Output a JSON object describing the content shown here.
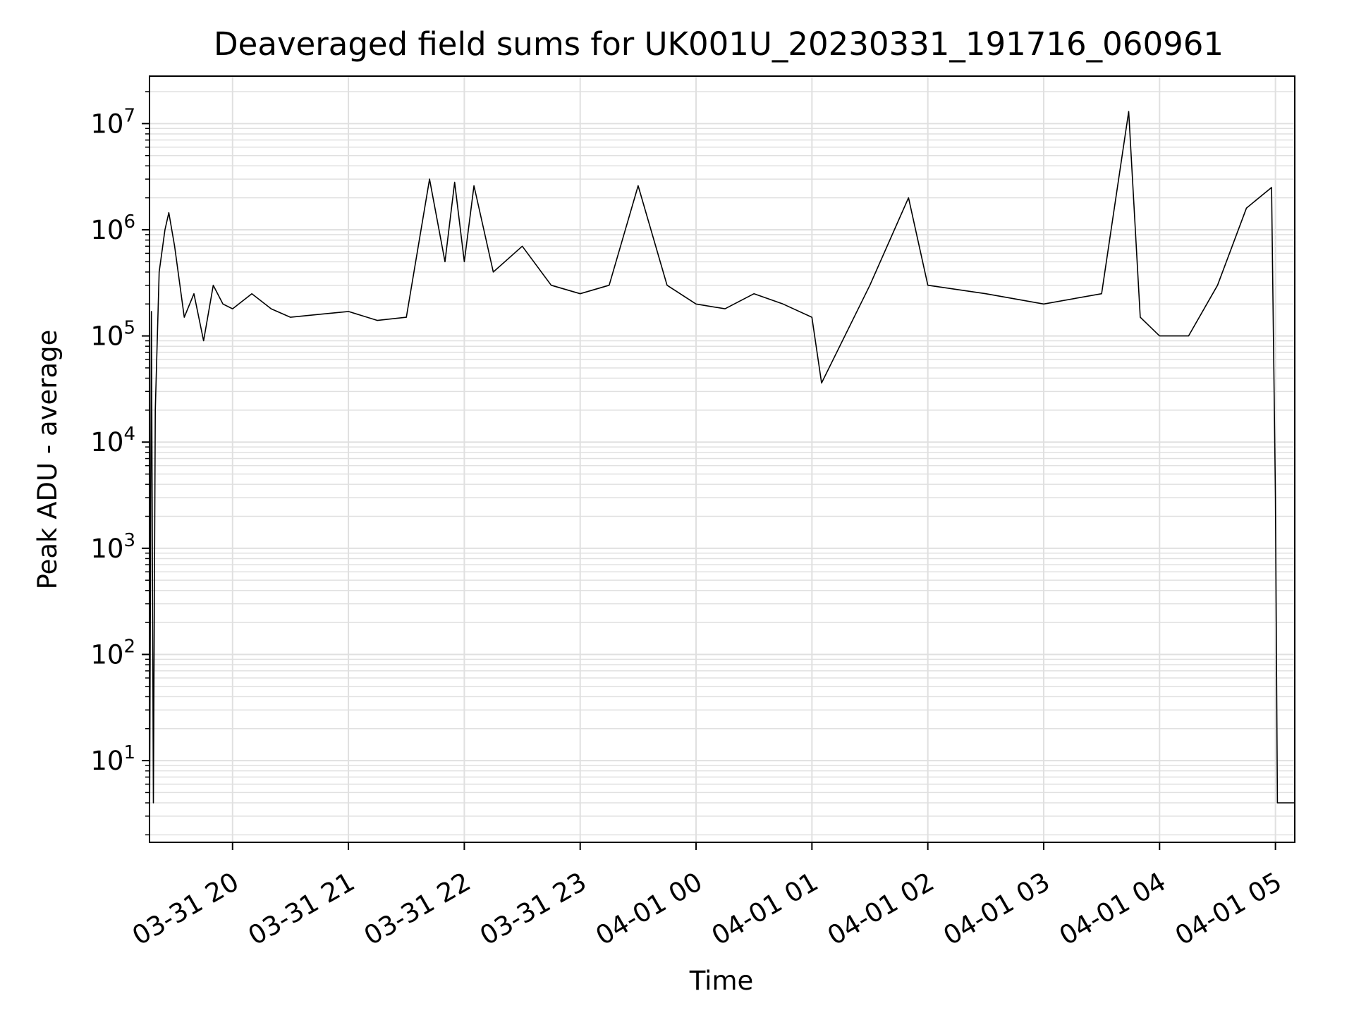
{
  "chart_data": {
    "type": "line",
    "title": "Deaveraged field sums for UK001U_20230331_191716_060961",
    "xlabel": "Time",
    "ylabel": "Peak ADU - average",
    "yscale": "log",
    "ylim": [
      1.7,
      28000000
    ],
    "xlim": [
      "2023-03-31 19:17",
      "2023-04-01 05:10"
    ],
    "grid": true,
    "line_color": "#000000",
    "grid_color": "#e0e0e0",
    "x_ticks": [
      {
        "label": "03-31 20",
        "time": "2023-03-31 20:00"
      },
      {
        "label": "03-31 21",
        "time": "2023-03-31 21:00"
      },
      {
        "label": "03-31 22",
        "time": "2023-03-31 22:00"
      },
      {
        "label": "03-31 23",
        "time": "2023-03-31 23:00"
      },
      {
        "label": "04-01 00",
        "time": "2023-04-01 00:00"
      },
      {
        "label": "04-01 01",
        "time": "2023-04-01 01:00"
      },
      {
        "label": "04-01 02",
        "time": "2023-04-01 02:00"
      },
      {
        "label": "04-01 03",
        "time": "2023-04-01 03:00"
      },
      {
        "label": "04-01 04",
        "time": "2023-04-01 04:00"
      },
      {
        "label": "04-01 05",
        "time": "2023-04-01 05:00"
      }
    ],
    "y_ticks": [
      {
        "base": "10",
        "exp": "1",
        "value": 10
      },
      {
        "base": "10",
        "exp": "2",
        "value": 100
      },
      {
        "base": "10",
        "exp": "3",
        "value": 1000
      },
      {
        "base": "10",
        "exp": "4",
        "value": 10000
      },
      {
        "base": "10",
        "exp": "5",
        "value": 100000
      },
      {
        "base": "10",
        "exp": "6",
        "value": 1000000
      },
      {
        "base": "10",
        "exp": "7",
        "value": 10000000
      }
    ],
    "series": [
      {
        "points": [
          [
            "2023-03-31 19:17",
            1.7
          ],
          [
            "2023-03-31 19:18",
            170000
          ],
          [
            "2023-03-31 19:19",
            4
          ],
          [
            "2023-03-31 19:20",
            20000
          ],
          [
            "2023-03-31 19:22",
            400000
          ],
          [
            "2023-03-31 19:25",
            1000000
          ],
          [
            "2023-03-31 19:27",
            1450000
          ],
          [
            "2023-03-31 19:30",
            700000
          ],
          [
            "2023-03-31 19:35",
            150000
          ],
          [
            "2023-03-31 19:40",
            250000
          ],
          [
            "2023-03-31 19:45",
            90000
          ],
          [
            "2023-03-31 19:50",
            300000
          ],
          [
            "2023-03-31 19:55",
            200000
          ],
          [
            "2023-03-31 20:00",
            180000
          ],
          [
            "2023-03-31 20:10",
            250000
          ],
          [
            "2023-03-31 20:20",
            180000
          ],
          [
            "2023-03-31 20:30",
            150000
          ],
          [
            "2023-03-31 20:45",
            160000
          ],
          [
            "2023-03-31 21:00",
            170000
          ],
          [
            "2023-03-31 21:15",
            140000
          ],
          [
            "2023-03-31 21:30",
            150000
          ],
          [
            "2023-03-31 21:42",
            3000000
          ],
          [
            "2023-03-31 21:50",
            500000
          ],
          [
            "2023-03-31 21:55",
            2800000
          ],
          [
            "2023-03-31 22:00",
            500000
          ],
          [
            "2023-03-31 22:05",
            2600000
          ],
          [
            "2023-03-31 22:15",
            400000
          ],
          [
            "2023-03-31 22:30",
            700000
          ],
          [
            "2023-03-31 22:45",
            300000
          ],
          [
            "2023-03-31 23:00",
            250000
          ],
          [
            "2023-03-31 23:15",
            300000
          ],
          [
            "2023-03-31 23:30",
            2600000
          ],
          [
            "2023-03-31 23:45",
            300000
          ],
          [
            "2023-04-01 00:00",
            200000
          ],
          [
            "2023-04-01 00:15",
            180000
          ],
          [
            "2023-04-01 00:30",
            250000
          ],
          [
            "2023-04-01 00:45",
            200000
          ],
          [
            "2023-04-01 01:00",
            150000
          ],
          [
            "2023-04-01 01:05",
            36000
          ],
          [
            "2023-04-01 01:30",
            300000
          ],
          [
            "2023-04-01 01:50",
            2000000
          ],
          [
            "2023-04-01 02:00",
            300000
          ],
          [
            "2023-04-01 02:30",
            250000
          ],
          [
            "2023-04-01 03:00",
            200000
          ],
          [
            "2023-04-01 03:30",
            250000
          ],
          [
            "2023-04-01 03:44",
            13000000
          ],
          [
            "2023-04-01 03:50",
            150000
          ],
          [
            "2023-04-01 04:00",
            100000
          ],
          [
            "2023-04-01 04:15",
            100000
          ],
          [
            "2023-04-01 04:30",
            300000
          ],
          [
            "2023-04-01 04:45",
            1600000
          ],
          [
            "2023-04-01 04:58",
            2500000
          ],
          [
            "2023-04-01 05:00",
            3000
          ],
          [
            "2023-04-01 05:01",
            4
          ],
          [
            "2023-04-01 05:10",
            4
          ]
        ]
      }
    ]
  }
}
